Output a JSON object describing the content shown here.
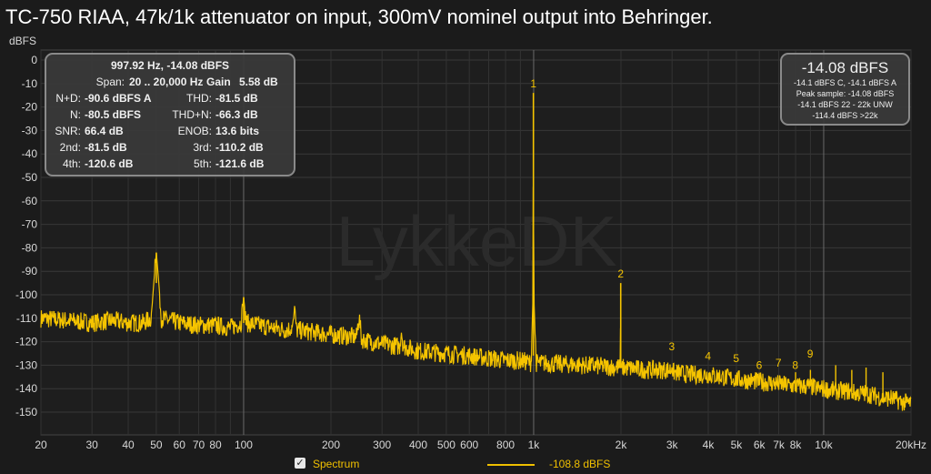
{
  "title": "TC-750 RIAA, 47k/1k attenuator on input, 300mV nominel output into Behringer.",
  "watermark": "LykkeDK",
  "colors": {
    "trace": "#f5c400",
    "background": "#1b1b1b",
    "grid": "#3a3a3a"
  },
  "stats": {
    "header": "997.92 Hz, -14.08 dBFS",
    "span_label": "Span:",
    "span_value": "20 .. 20,000 Hz",
    "gain_label": "Gain",
    "gain_value": "5.58 dB",
    "rows": [
      {
        "l1": "N+D:",
        "v1": "-90.6 dBFS A",
        "l2": "THD:",
        "v2": "-81.5 dB"
      },
      {
        "l1": "N:",
        "v1": "-80.5 dBFS",
        "l2": "THD+N:",
        "v2": "-66.3 dB"
      },
      {
        "l1": "SNR:",
        "v1": "66.4 dB",
        "l2": "ENOB:",
        "v2": "13.6 bits"
      },
      {
        "l1": "2nd:",
        "v1": "-81.5 dB",
        "l2": "3rd:",
        "v2": "-110.2 dB"
      },
      {
        "l1": "4th:",
        "v1": "-120.6 dB",
        "l2": "5th:",
        "v2": "-121.6 dB"
      }
    ]
  },
  "level_box": {
    "big": "-14.08 dBFS",
    "lines": [
      "-14.1 dBFS C, -14.1 dBFS A",
      "Peak sample: -14.08 dBFS",
      "-14.1 dBFS 22 - 22k UNW",
      "-114.4 dBFS >22k"
    ]
  },
  "legend": {
    "checkbox_mark": "✓",
    "series": "Spectrum",
    "level": "-108.8 dBFS"
  },
  "chart_data": {
    "type": "line",
    "title": "TC-750 RIAA, 47k/1k attenuator on input, 300mV nominel output into Behringer.",
    "xlabel": "",
    "ylabel": "dBFS",
    "x_scale": "log",
    "xlim": [
      20,
      20000
    ],
    "ylim": [
      -155,
      0
    ],
    "grid": true,
    "legend_position": "bottom-center",
    "y_ticks": [
      0,
      -10,
      -20,
      -30,
      -40,
      -50,
      -60,
      -70,
      -80,
      -90,
      -100,
      -110,
      -120,
      -130,
      -140,
      -150
    ],
    "y_tick_labels": [
      "0",
      "-10",
      "-20",
      "-30",
      "-40",
      "-50",
      "-60",
      "-70",
      "-80",
      "-90",
      "-100",
      "-110",
      "-120",
      "-130",
      "-140",
      "-150"
    ],
    "x_ticks": [
      20,
      30,
      40,
      50,
      60,
      70,
      80,
      100,
      200,
      300,
      400,
      500,
      600,
      800,
      1000,
      2000,
      3000,
      4000,
      5000,
      6000,
      7000,
      8000,
      10000,
      20000
    ],
    "x_tick_labels": [
      "20",
      "30",
      "40",
      "50",
      "60",
      "70",
      "80",
      "100",
      "200",
      "300",
      "400",
      "500",
      "600",
      "800",
      "1k",
      "2k",
      "3k",
      "4k",
      "5k",
      "6k",
      "7k",
      "8k",
      "10k",
      "20kHz"
    ],
    "series": [
      {
        "color": "#f5c400",
        "points": [
          [
            20,
            -110
          ],
          [
            25,
            -111
          ],
          [
            30,
            -112
          ],
          [
            35,
            -111
          ],
          [
            40,
            -112
          ],
          [
            45,
            -112
          ],
          [
            48,
            -110
          ],
          [
            49,
            -95
          ],
          [
            50,
            -82
          ],
          [
            51,
            -95
          ],
          [
            52,
            -110
          ],
          [
            60,
            -112
          ],
          [
            70,
            -113
          ],
          [
            80,
            -113
          ],
          [
            90,
            -114
          ],
          [
            98,
            -112
          ],
          [
            100,
            -101
          ],
          [
            102,
            -112
          ],
          [
            140,
            -115
          ],
          [
            148,
            -114
          ],
          [
            150,
            -104
          ],
          [
            152,
            -115
          ],
          [
            200,
            -117
          ],
          [
            245,
            -118
          ],
          [
            250,
            -109
          ],
          [
            255,
            -119
          ],
          [
            300,
            -121
          ],
          [
            345,
            -122
          ],
          [
            350,
            -115
          ],
          [
            355,
            -122
          ],
          [
            400,
            -124
          ],
          [
            500,
            -125
          ],
          [
            600,
            -126
          ],
          [
            700,
            -127
          ],
          [
            800,
            -128
          ],
          [
            900,
            -128
          ],
          [
            980,
            -129
          ],
          [
            995,
            -100
          ],
          [
            998,
            -14
          ],
          [
            1001,
            -100
          ],
          [
            1020,
            -129
          ],
          [
            1500,
            -130
          ],
          [
            1990,
            -131
          ],
          [
            1996,
            -95
          ],
          [
            2000,
            -131
          ],
          [
            2500,
            -132
          ],
          [
            2990,
            -132
          ],
          [
            3000,
            -126
          ],
          [
            3010,
            -133
          ],
          [
            3500,
            -134
          ],
          [
            4000,
            -134
          ],
          [
            5000,
            -136
          ],
          [
            6000,
            -137
          ],
          [
            7000,
            -138
          ],
          [
            8000,
            -139
          ],
          [
            9000,
            -139
          ],
          [
            9500,
            -140
          ],
          [
            10000,
            -140
          ],
          [
            11000,
            -141
          ],
          [
            12000,
            -141
          ],
          [
            13000,
            -142
          ],
          [
            14000,
            -142
          ],
          [
            15000,
            -143
          ],
          [
            16000,
            -144
          ],
          [
            17000,
            -144
          ],
          [
            18000,
            -145
          ],
          [
            19000,
            -146
          ],
          [
            20000,
            -146
          ]
        ]
      }
    ],
    "noise_band_db": 4,
    "spurs": [
      {
        "x": 8000,
        "y": -133
      },
      {
        "x": 9000,
        "y": -132
      },
      {
        "x": 11000,
        "y": -130
      },
      {
        "x": 12500,
        "y": -132
      },
      {
        "x": 14000,
        "y": -131
      },
      {
        "x": 16000,
        "y": -133
      }
    ],
    "harmonic_markers": [
      {
        "label": "1",
        "x": 998,
        "y": -14
      },
      {
        "label": "2",
        "x": 1996,
        "y": -95
      },
      {
        "label": "3",
        "x": 2994,
        "y": -126
      },
      {
        "label": "4",
        "x": 3992,
        "y": -130
      },
      {
        "label": "5",
        "x": 4990,
        "y": -131
      },
      {
        "label": "6",
        "x": 5988,
        "y": -134
      },
      {
        "label": "7",
        "x": 6986,
        "y": -133
      },
      {
        "label": "8",
        "x": 7984,
        "y": -134
      },
      {
        "label": "9",
        "x": 8982,
        "y": -129
      }
    ]
  }
}
